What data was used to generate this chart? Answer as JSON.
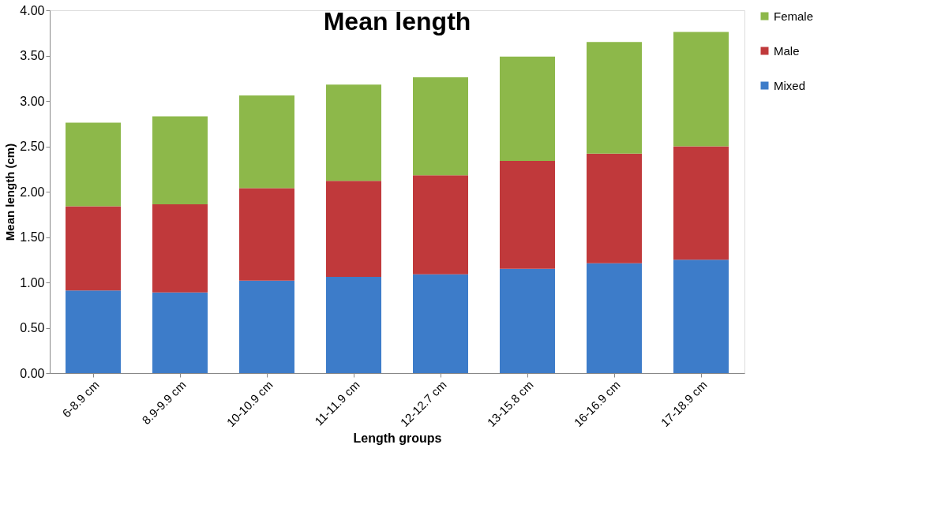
{
  "chart_data": {
    "type": "bar",
    "title": "Mean length",
    "xlabel": "Length groups",
    "ylabel": "Mean length (cm)",
    "categories": [
      "6-8.9 cm",
      "8.9-9.9 cm",
      "10-10.9 cm",
      "11-11.9 cm",
      "12-12.7 cm",
      "13-15.8 cm",
      "16-16.9 cm",
      "17-18.9 cm"
    ],
    "stacked": true,
    "grid": false,
    "legend": "right",
    "series": [
      {
        "name": "Mixed",
        "color": "#3d7cc9",
        "values": [
          0.91,
          0.89,
          1.02,
          1.06,
          1.09,
          1.15,
          1.21,
          1.25
        ]
      },
      {
        "name": "Male",
        "color": "#c0393b",
        "values": [
          0.93,
          0.97,
          1.02,
          1.06,
          1.09,
          1.19,
          1.21,
          1.25
        ]
      },
      {
        "name": "Female",
        "color": "#8db84a",
        "values": [
          0.92,
          0.97,
          1.02,
          1.06,
          1.08,
          1.15,
          1.23,
          1.26
        ]
      }
    ],
    "ylim": [
      0,
      4
    ],
    "yticks": [
      {
        "value": 0,
        "label": "0.00"
      },
      {
        "value": 0.5,
        "label": "0.50"
      },
      {
        "value": 1,
        "label": "1.00"
      },
      {
        "value": 1.5,
        "label": "1.50"
      },
      {
        "value": 2,
        "label": "2.00"
      },
      {
        "value": 2.5,
        "label": "2.50"
      },
      {
        "value": 3,
        "label": "3.00"
      },
      {
        "value": 3.5,
        "label": "3.50"
      },
      {
        "value": 4,
        "label": "4.00"
      }
    ]
  }
}
